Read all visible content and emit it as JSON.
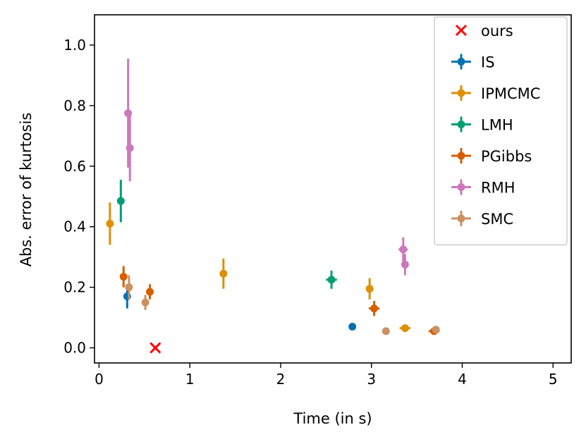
{
  "chart_data": {
    "type": "scatter",
    "xlabel": "Time (in s)",
    "ylabel": "Abs. error of kurtosis",
    "xlim": [
      -0.05,
      5.2
    ],
    "ylim": [
      -0.05,
      1.1
    ],
    "xticks": [
      0,
      1,
      2,
      3,
      4,
      5
    ],
    "yticks": [
      0.0,
      0.2,
      0.4,
      0.6,
      0.8,
      1.0
    ],
    "xtick_labels": [
      "0",
      "1",
      "2",
      "3",
      "4",
      "5"
    ],
    "ytick_labels": [
      "0.0",
      "0.2",
      "0.4",
      "0.6",
      "0.8",
      "1.0"
    ],
    "grid": false,
    "legend_position": "top-right",
    "series": [
      {
        "name": "ours",
        "color": "#ff0000",
        "marker": "x",
        "points": [
          {
            "x": 0.62,
            "y": 0.0
          }
        ]
      },
      {
        "name": "IS",
        "color": "#0173b2",
        "marker": "dot",
        "points": [
          {
            "x": 0.31,
            "y": 0.17,
            "yerr": 0.04,
            "xerr": 0.0
          },
          {
            "x": 2.79,
            "y": 0.07,
            "yerr": 0.0,
            "xerr": 0.0
          }
        ]
      },
      {
        "name": "IPMCMC",
        "color": "#de8f05",
        "marker": "dot",
        "points": [
          {
            "x": 0.12,
            "y": 0.41,
            "yerr": 0.07,
            "xerr": 0.0
          },
          {
            "x": 1.37,
            "y": 0.245,
            "yerr": 0.05,
            "xerr": 0.0
          },
          {
            "x": 2.98,
            "y": 0.195,
            "yerr": 0.035,
            "xerr": 0.0
          },
          {
            "x": 3.37,
            "y": 0.065,
            "yerr": 0.0,
            "xerr": 0.06
          }
        ]
      },
      {
        "name": "LMH",
        "color": "#029e73",
        "marker": "dot",
        "points": [
          {
            "x": 0.24,
            "y": 0.485,
            "yerr": 0.07,
            "xerr": 0.0
          },
          {
            "x": 2.56,
            "y": 0.225,
            "yerr": 0.03,
            "xerr": 0.06
          }
        ]
      },
      {
        "name": "PGibbs",
        "color": "#d55e00",
        "marker": "dot",
        "points": [
          {
            "x": 0.27,
            "y": 0.235,
            "yerr": 0.035,
            "xerr": 0.0
          },
          {
            "x": 0.56,
            "y": 0.185,
            "yerr": 0.025,
            "xerr": 0.0
          },
          {
            "x": 3.03,
            "y": 0.13,
            "yerr": 0.025,
            "xerr": 0.06
          },
          {
            "x": 3.69,
            "y": 0.055,
            "yerr": 0.0,
            "xerr": 0.06
          }
        ]
      },
      {
        "name": "RMH",
        "color": "#cc78bc",
        "marker": "dot",
        "points": [
          {
            "x": 0.32,
            "y": 0.775,
            "yerr": 0.18,
            "xerr": 0.0
          },
          {
            "x": 0.34,
            "y": 0.66,
            "yerr": 0.11,
            "xerr": 0.0
          },
          {
            "x": 3.35,
            "y": 0.325,
            "yerr": 0.04,
            "xerr": 0.05
          },
          {
            "x": 3.37,
            "y": 0.275,
            "yerr": 0.035,
            "xerr": 0.0
          }
        ]
      },
      {
        "name": "SMC",
        "color": "#ca9161",
        "marker": "dot",
        "points": [
          {
            "x": 0.33,
            "y": 0.2,
            "yerr": 0.04,
            "xerr": 0.0
          },
          {
            "x": 0.51,
            "y": 0.15,
            "yerr": 0.025,
            "xerr": 0.0
          },
          {
            "x": 3.16,
            "y": 0.055,
            "yerr": 0.0,
            "xerr": 0.0
          },
          {
            "x": 3.71,
            "y": 0.06,
            "yerr": 0.0,
            "xerr": 0.03
          }
        ]
      }
    ]
  }
}
